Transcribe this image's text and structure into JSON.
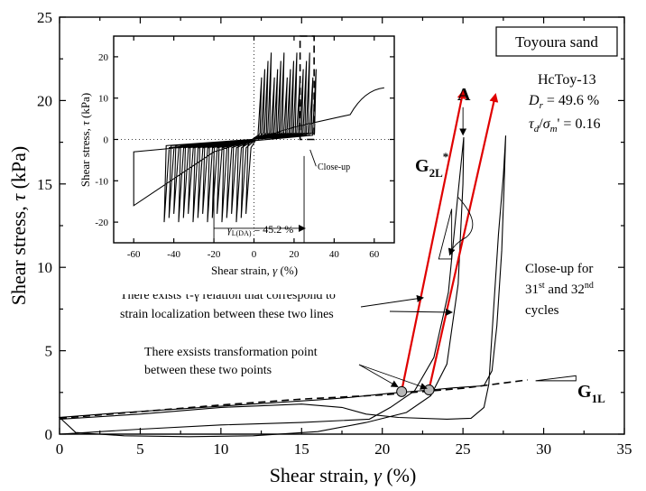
{
  "chart_data": [
    {
      "type": "line",
      "xlabel_main": "Shear strain, ",
      "xlabel_sym": "γ",
      "xlabel_unit": " (%)",
      "ylabel_main": "Shear stress, ",
      "ylabel_sym": "τ",
      "ylabel_unit": " (kPa)",
      "xlim": [
        0,
        35
      ],
      "ylim": [
        0,
        25
      ],
      "xticks": [
        "0",
        "5",
        "10",
        "15",
        "20",
        "25",
        "30",
        "35"
      ],
      "yticks": [
        "0",
        "5",
        "10",
        "15",
        "20",
        "25"
      ],
      "series": [
        {
          "style": "solid",
          "points": [
            [
              0,
              0
            ],
            [
              5,
              0.3
            ],
            [
              10,
              0.55
            ],
            [
              15,
              0.7
            ],
            [
              19.2,
              0.9
            ],
            [
              20.5,
              1.6
            ],
            [
              22,
              2.6
            ],
            [
              23.2,
              4.6
            ],
            [
              24.1,
              8.5
            ],
            [
              24.7,
              14.5
            ],
            [
              25.05,
              17.8
            ],
            [
              25.0,
              15.0
            ],
            [
              24.7,
              9
            ],
            [
              24.0,
              4.2
            ],
            [
              23.0,
              2.3
            ],
            [
              21.5,
              1.3
            ],
            [
              19,
              0.7
            ],
            [
              16,
              0.15
            ],
            [
              12,
              -0.1
            ],
            [
              8,
              -0.15
            ],
            [
              4,
              -0.1
            ],
            [
              1,
              0.1
            ],
            [
              0,
              1.0
            ],
            [
              4,
              1.3
            ],
            [
              8,
              1.55
            ],
            [
              12,
              1.8
            ],
            [
              16,
              2.05
            ],
            [
              18,
              2.2
            ],
            [
              20.5,
              2.45
            ],
            [
              23,
              2.65
            ],
            [
              24.5,
              2.78
            ],
            [
              26.3,
              2.9
            ],
            [
              26.8,
              3.8
            ],
            [
              27.1,
              6.5
            ],
            [
              27.4,
              11
            ],
            [
              27.55,
              15
            ],
            [
              27.65,
              17.9
            ],
            [
              27.5,
              15.5
            ],
            [
              27.2,
              12
            ],
            [
              27,
              9
            ],
            [
              26.8,
              6
            ],
            [
              26.6,
              3.0
            ],
            [
              26.3,
              1.6
            ],
            [
              25.5,
              0.95
            ],
            [
              24,
              0.9
            ],
            [
              21,
              1.0
            ],
            [
              19,
              1.2
            ],
            [
              17.5,
              1.6
            ],
            [
              15,
              1.8
            ],
            [
              10,
              1.6
            ],
            [
              5,
              1.2
            ],
            [
              0,
              0.9
            ]
          ]
        },
        {
          "style": "dashed",
          "points": [
            [
              0,
              0.95
            ],
            [
              5,
              1.35
            ],
            [
              10,
              1.75
            ],
            [
              15,
              2.1
            ],
            [
              20,
              2.35
            ],
            [
              25,
              2.75
            ],
            [
              29,
              3.25
            ]
          ]
        },
        {
          "style": "red-arrow",
          "points": [
            [
              21.2,
              2.6
            ],
            [
              25.0,
              20.5
            ]
          ]
        },
        {
          "style": "red-arrow",
          "points": [
            [
              22.9,
              2.7
            ],
            [
              27.0,
              20.3
            ]
          ]
        }
      ],
      "points": [
        [
          21.2,
          2.55
        ],
        [
          22.9,
          2.65
        ]
      ],
      "labels": {
        "box_title": "Toyoura sand",
        "test_id": "HcToy-13",
        "dr": "D",
        "dr_sub": "r",
        "dr_value": " = 49.6 %",
        "ratio_tau": "τ",
        "ratio_d": "d",
        "ratio_sigma": "σ",
        "ratio_m": "m",
        "ratio_value": "' = 0.16",
        "point_a": "A",
        "g2l": "G",
        "g2l_sub": "2L",
        "g2l_star": "*",
        "g1l": "G",
        "g1l_sub": "1L",
        "closeup_1": "Close-up for",
        "closeup_2a": "31",
        "closeup_2b": "st",
        "closeup_2c": " and 32",
        "closeup_2d": "nd",
        "closeup_3": "cycles",
        "note1_line1": "There exists τ-γ relation that correspond to",
        "note1_line2": "strain localization between these two lines",
        "note2_line1": "There exsists transformation point",
        "note2_line2": "between these two points"
      }
    },
    {
      "type": "line",
      "xlabel_main": "Shear strain, ",
      "xlabel_sym": "γ",
      "xlabel_unit": " (%)",
      "ylabel_main": "Shear stress, ",
      "ylabel_sym": "τ",
      "ylabel_unit": " (kPa)",
      "xlim": [
        -70,
        70
      ],
      "ylim": [
        -25,
        25
      ],
      "xticks": [
        "-60",
        "-40",
        "-20",
        "0",
        "20",
        "40",
        "60"
      ],
      "yticks": [
        "-20",
        "-10",
        "0",
        "10",
        "20"
      ],
      "gamma_label": "γ",
      "gamma_sub": "L(DA)",
      "gamma_value": " = 45.2 %",
      "closeup_label": "Close-up"
    }
  ]
}
